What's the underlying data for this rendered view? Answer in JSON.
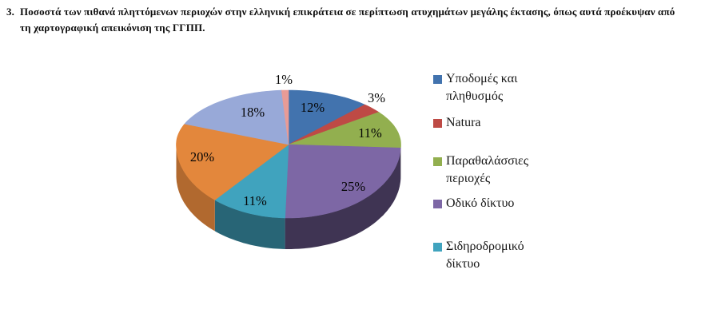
{
  "page": {
    "background": "#ffffff"
  },
  "heading": {
    "number": "3.",
    "lines": [
      "Ποσοστά των πιθανά πληττόμενων περιοχών στην ελληνική επικράτεια σε περίπτωση ατυχημάτων μεγάλης έκτασης, όπως αυτά προέκυψαν από",
      "τη χαρτογραφική απεικόνιση της ΓΓΠΠ."
    ]
  },
  "chart_data": {
    "type": "pie",
    "style": "3d",
    "start_angle_deg": 0,
    "direction": "clockwise",
    "legend_position": "right",
    "slices": [
      {
        "label": "Υποδομές και πληθυσμός",
        "value": 12,
        "display": "12%",
        "color": "#4273AE"
      },
      {
        "label": "Natura",
        "value": 3,
        "display": "3%",
        "color": "#BE4A45"
      },
      {
        "label": "Παραθαλάσσιες περιοχές",
        "value": 11,
        "display": "11%",
        "color": "#92AF4F"
      },
      {
        "label": "Οδικό δίκτυο",
        "value": 25,
        "display": "25%",
        "color": "#7D67A5"
      },
      {
        "label": "Σιδηροδρομικό δίκτυο",
        "value": 11,
        "display": "11%",
        "color": "#40A3BE"
      },
      {
        "value": 20,
        "display": "20%",
        "color": "#E3873C"
      },
      {
        "value": 18,
        "display": "18%",
        "color": "#98A9D8"
      },
      {
        "value": 1,
        "display": "1%",
        "color": "#E89B96"
      }
    ],
    "legend": [
      {
        "lines": [
          "Υποδομές και",
          "πληθυσμός"
        ],
        "color": "#4273AE"
      },
      {
        "lines": [
          "Natura"
        ],
        "color": "#BE4A45"
      },
      {
        "lines": [
          "Παραθαλάσσιες",
          "περιοχές"
        ],
        "color": "#92AF4F"
      },
      {
        "lines": [
          "Οδικό δίκτυο"
        ],
        "color": "#7D67A5"
      },
      {
        "lines": [
          "Σιδηροδρομικό",
          "δίκτυο"
        ],
        "color": "#40A3BE"
      }
    ]
  }
}
